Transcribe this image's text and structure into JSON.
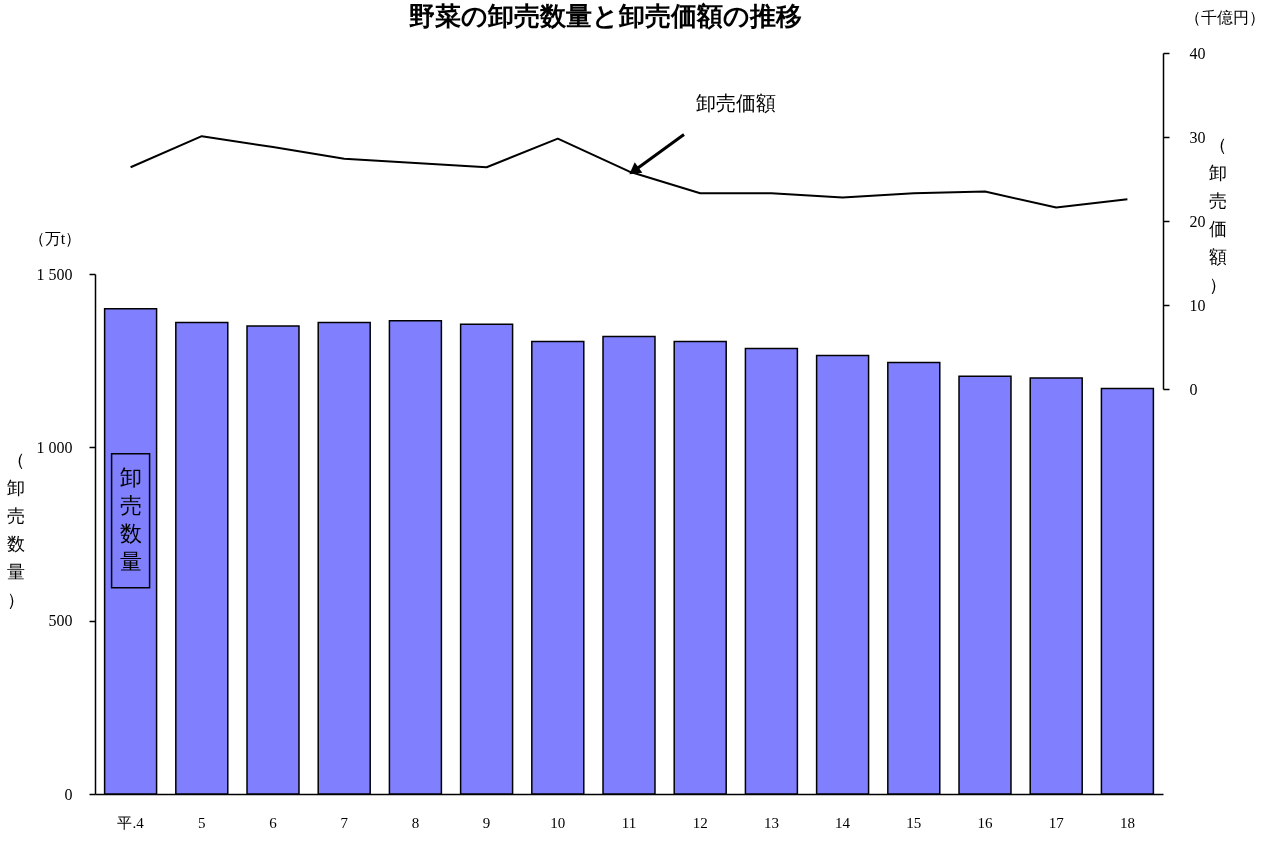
{
  "chart_data": [
    {
      "type": "line",
      "title": "野菜の卸売数量と卸売価額の推移",
      "categories": [
        "平.4",
        "5",
        "6",
        "7",
        "8",
        "9",
        "10",
        "11",
        "12",
        "13",
        "14",
        "15",
        "16",
        "17",
        "18"
      ],
      "y2label": "（卸売価額）",
      "annotations": [
        "（千億円）"
      ],
      "series": [
        {
          "name": "卸売価額",
          "axis": "y2",
          "color": "#000000",
          "values": [
            26.4,
            30.1,
            28.8,
            27.4,
            26.9,
            26.4,
            29.8,
            25.9,
            23.3,
            23.3,
            22.8,
            23.3,
            23.5,
            21.6,
            22.6
          ]
        }
      ],
      "y2lim": [
        0,
        40
      ],
      "y2ticks": [
        0,
        10,
        20,
        30,
        40
      ],
      "tick_labels": "y",
      "grid": false,
      "legend": false,
      "marker": "none",
      "line_style": "solid"
    },
    {
      "type": "bar",
      "categories": [
        "平.4",
        "5",
        "6",
        "7",
        "8",
        "9",
        "10",
        "11",
        "12",
        "13",
        "14",
        "15",
        "16",
        "17",
        "18"
      ],
      "ylabel": "（卸売数量）",
      "annotations": [
        "（万t）"
      ],
      "series": [
        {
          "name": "卸売数量",
          "color": "#8080ff",
          "values": [
            1400,
            1360,
            1350,
            1360,
            1365,
            1355,
            1305,
            1320,
            1305,
            1285,
            1265,
            1245,
            1205,
            1200,
            1170
          ]
        }
      ],
      "ylim": [
        0,
        1500
      ],
      "yticks": [
        0,
        500,
        {
          "value": 1000,
          "label": "1 000"
        },
        {
          "value": 1500,
          "label": "1 500"
        }
      ],
      "grid": false,
      "legend": false
    }
  ]
}
